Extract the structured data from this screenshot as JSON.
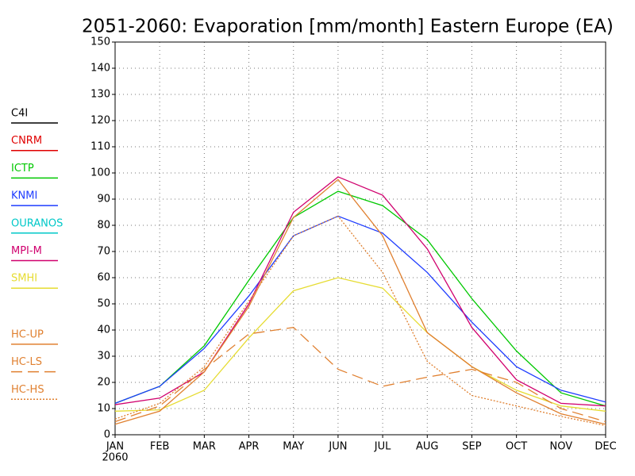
{
  "chart_data": {
    "type": "line",
    "title": "2051-2060: Evaporation [mm/month] Eastern Europe (EA)",
    "categories": [
      "JAN",
      "FEB",
      "MAR",
      "APR",
      "MAY",
      "JUN",
      "JUL",
      "AUG",
      "SEP",
      "OCT",
      "NOV",
      "DEC"
    ],
    "x_sublabel": "2060",
    "ylim": [
      0,
      150
    ],
    "yticks": [
      0,
      10,
      20,
      30,
      40,
      50,
      60,
      70,
      80,
      90,
      100,
      110,
      120,
      130,
      140,
      150
    ],
    "grid": true,
    "legend": "left",
    "series": [
      {
        "name": "C4I",
        "color": "#000000",
        "dash": "solid",
        "values": [
          null,
          null,
          null,
          null,
          null,
          null,
          null,
          null,
          null,
          null,
          null,
          null
        ]
      },
      {
        "name": "CNRM",
        "color": "#e00000",
        "dash": "solid",
        "values": [
          null,
          null,
          null,
          null,
          null,
          null,
          null,
          null,
          null,
          null,
          null,
          null
        ]
      },
      {
        "name": "ICTP",
        "color": "#00c800",
        "dash": "solid",
        "values": [
          12,
          18.5,
          34,
          59,
          83,
          93,
          87.5,
          74.5,
          52,
          32,
          16,
          11
        ]
      },
      {
        "name": "KNMI",
        "color": "#1e3cff",
        "dash": "solid",
        "values": [
          12,
          18.5,
          33,
          53,
          76,
          83.5,
          77,
          62,
          43,
          26,
          17,
          12.5
        ]
      },
      {
        "name": "OURANOS",
        "color": "#00c8c8",
        "dash": "solid",
        "values": [
          null,
          null,
          null,
          null,
          null,
          null,
          null,
          null,
          null,
          null,
          null,
          null
        ]
      },
      {
        "name": "MPI-M",
        "color": "#d0006e",
        "dash": "solid",
        "values": [
          11.5,
          14,
          24,
          50,
          85,
          98.5,
          91.5,
          71,
          41,
          21,
          12,
          11
        ]
      },
      {
        "name": "SMHI",
        "color": "#e6dc32",
        "dash": "solid",
        "values": [
          9,
          9.5,
          17,
          37,
          55,
          60,
          56,
          39,
          26,
          17,
          11,
          9
        ]
      },
      {
        "name": "HC-UP",
        "color": "#e08030",
        "dash": "solid",
        "values": [
          4,
          9,
          24,
          49,
          83,
          97.5,
          76,
          39,
          26,
          16,
          8,
          4
        ]
      },
      {
        "name": "HC-LS",
        "color": "#e08030",
        "dash": "dashed",
        "values": [
          5,
          11,
          25,
          38.5,
          41,
          25,
          18.5,
          22,
          25,
          20,
          10,
          5
        ]
      },
      {
        "name": "HC-HS",
        "color": "#e08030",
        "dash": "dotted",
        "values": [
          6,
          12,
          26,
          51,
          76,
          83.5,
          62,
          28,
          15,
          11,
          7,
          3.5
        ]
      }
    ]
  }
}
